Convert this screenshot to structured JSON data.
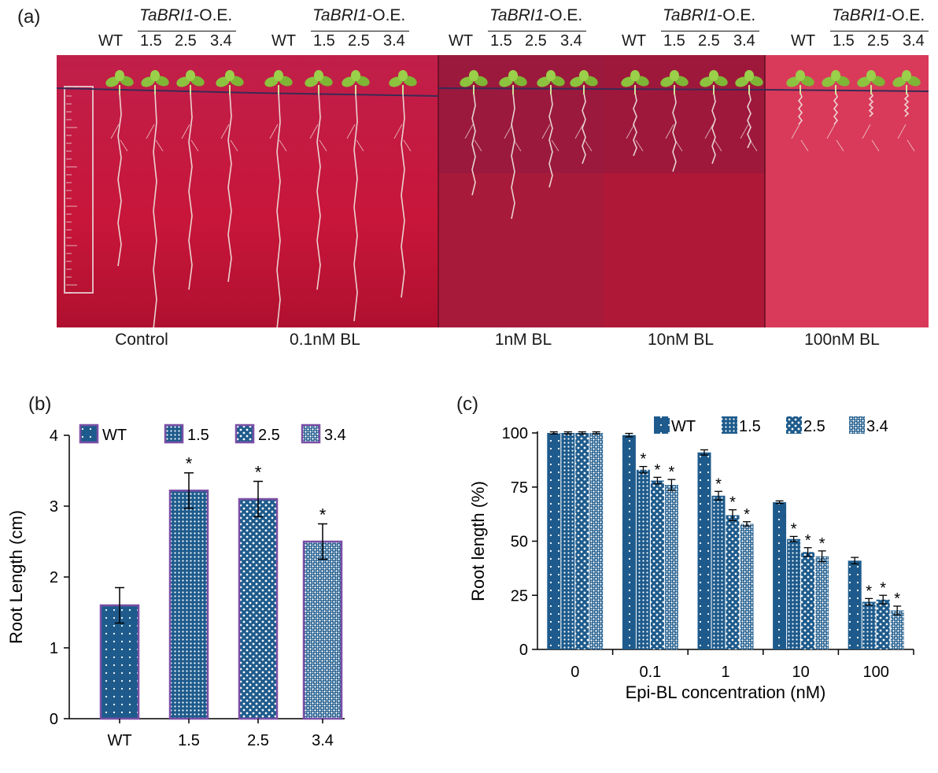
{
  "panel_a": {
    "letter": "(a)",
    "groups": [
      {
        "oe_gene": "TaBRI1",
        "oe_suffix": "-O.E.",
        "genotypes": [
          "WT",
          "1.5",
          "2.5",
          "3.4"
        ]
      },
      {
        "oe_gene": "TaBRI1",
        "oe_suffix": "-O.E.",
        "genotypes": [
          "WT",
          "1.5",
          "2.5",
          "3.4"
        ]
      },
      {
        "oe_gene": "TaBRI1",
        "oe_suffix": "-O.E.",
        "genotypes": [
          "WT",
          "1.5",
          "2.5",
          "3.4"
        ]
      },
      {
        "oe_gene": "TaBRI1",
        "oe_suffix": "-O.E.",
        "genotypes": [
          "WT",
          "1.5",
          "2.5",
          "3.4"
        ]
      },
      {
        "oe_gene": "TaBRI1",
        "oe_suffix": "-O.E.",
        "genotypes": [
          "WT",
          "1.5",
          "2.5",
          "3.4"
        ]
      }
    ],
    "treatments": [
      "Control",
      "0.1nM BL",
      "1nM BL",
      "10nM BL",
      "100nM BL"
    ],
    "colors": {
      "agar": "#c8163a",
      "agar_light": "#d93a5a",
      "root": "#f0e6e0",
      "leaf": "#8cc23e"
    }
  },
  "chart_data": [
    {
      "panel": "(b)",
      "type": "bar",
      "categories": [
        "WT",
        "1.5",
        "2.5",
        "3.4"
      ],
      "values": [
        1.6,
        3.22,
        3.1,
        2.5
      ],
      "errors": [
        0.25,
        0.25,
        0.25,
        0.25
      ],
      "significance": [
        "",
        "*",
        "*",
        "*"
      ],
      "legend": [
        "WT",
        "1.5",
        "2.5",
        "3.4"
      ],
      "legend_position": "top",
      "xlabel": "",
      "ylabel": "Root Length (cm)",
      "ylim": [
        0,
        4
      ],
      "yticks": [
        "0",
        "1",
        "2",
        "3",
        "4"
      ],
      "grid": false,
      "colors": {
        "fill": "#1e5b8c",
        "edge": "#7b4fa6"
      }
    },
    {
      "panel": "(c)",
      "type": "bar",
      "categories": [
        "0",
        "0.1",
        "1",
        "10",
        "100"
      ],
      "series": [
        {
          "name": "WT",
          "values": [
            100,
            99,
            91,
            68,
            41
          ],
          "errors": [
            0.5,
            0.8,
            1.2,
            0.6,
            1.5
          ],
          "significance": [
            "",
            "",
            "",
            "",
            ""
          ]
        },
        {
          "name": "1.5",
          "values": [
            100,
            83,
            71,
            51,
            22
          ],
          "errors": [
            0.5,
            1.5,
            2.0,
            1.2,
            1.5
          ],
          "significance": [
            "",
            "*",
            "*",
            "*",
            "*"
          ]
        },
        {
          "name": "2.5",
          "values": [
            100,
            78,
            62,
            45,
            23
          ],
          "errors": [
            0.5,
            1.5,
            2.5,
            2.0,
            2.0
          ],
          "significance": [
            "",
            "*",
            "*",
            "*",
            "*"
          ]
        },
        {
          "name": "3.4",
          "values": [
            100,
            76,
            58,
            43,
            18
          ],
          "errors": [
            0.5,
            2.5,
            1.0,
            2.5,
            2.0
          ],
          "significance": [
            "",
            "*",
            "*",
            "*",
            "*"
          ]
        }
      ],
      "legend_position": "top-right",
      "xlabel": "Epi-BL concentration (nM)",
      "ylabel": "Root length (%)",
      "ylim": [
        0,
        100
      ],
      "yticks": [
        "0",
        "25",
        "50",
        "75",
        "100"
      ],
      "grid": false,
      "colors": {
        "fill": "#1e5b8c"
      }
    }
  ]
}
